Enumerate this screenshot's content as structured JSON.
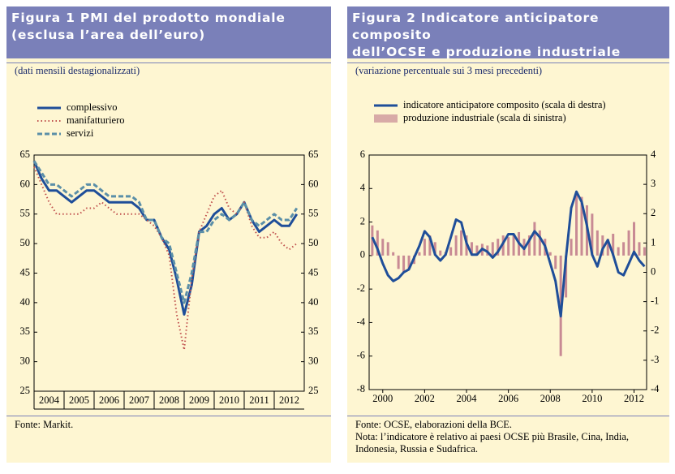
{
  "chart_data": [
    {
      "type": "line",
      "title": [
        "Figura 1 PMI del prodotto mondiale",
        "(esclusa l’area dell’euro)"
      ],
      "subtitle": "(dati mensili destagionalizzati)",
      "source": "Fonte: Markit.",
      "x": [
        2004,
        2004.25,
        2004.5,
        2004.75,
        2005,
        2005.25,
        2005.5,
        2005.75,
        2006,
        2006.25,
        2006.5,
        2006.75,
        2007,
        2007.25,
        2007.5,
        2007.75,
        2008,
        2008.25,
        2008.5,
        2008.75,
        2009,
        2009.25,
        2009.5,
        2009.75,
        2010,
        2010.25,
        2010.5,
        2010.75,
        2011,
        2011.25,
        2011.5,
        2011.75,
        2012,
        2012.25,
        2012.5,
        2012.75
      ],
      "xlim": [
        2004,
        2013
      ],
      "xticks": [
        2004,
        2005,
        2006,
        2007,
        2008,
        2009,
        2010,
        2011,
        2012
      ],
      "xtick_label_position": "between",
      "ylim": [
        25,
        65
      ],
      "yticks": [
        25,
        30,
        35,
        40,
        45,
        50,
        55,
        60,
        65
      ],
      "y2lim": [
        25,
        65
      ],
      "y2ticks": [
        25,
        30,
        35,
        40,
        45,
        50,
        55,
        60,
        65
      ],
      "series": [
        {
          "name": "complessivo",
          "color": "#1f4e99",
          "line_style": "solid",
          "values": [
            64,
            61,
            59,
            59,
            58,
            57,
            58,
            59,
            59,
            58,
            57,
            57,
            57,
            57,
            56,
            54,
            54,
            51,
            49,
            44,
            38,
            43,
            52,
            53,
            55,
            56,
            54,
            55,
            57,
            54,
            52,
            53,
            54,
            53,
            53,
            55
          ]
        },
        {
          "name": "manifatturiero",
          "color": "#c0504d",
          "line_style": "dotted",
          "values": [
            63,
            60,
            57,
            55,
            55,
            55,
            55,
            56,
            56,
            57,
            56,
            55,
            55,
            55,
            55,
            54,
            53,
            51,
            48,
            38,
            32,
            44,
            52,
            55,
            58,
            59,
            56,
            55,
            57,
            53,
            51,
            51,
            52,
            50,
            49,
            50
          ]
        },
        {
          "name": "servizi",
          "color": "#5b8fa8",
          "line_style": "dashed",
          "values": [
            64,
            62,
            60,
            60,
            59,
            58,
            59,
            60,
            60,
            59,
            58,
            58,
            58,
            58,
            57,
            54,
            54,
            51,
            50,
            45,
            40,
            45,
            52,
            52,
            54,
            55,
            54,
            55,
            57,
            54,
            53,
            54,
            55,
            54,
            54,
            56
          ]
        }
      ]
    },
    {
      "type": "combo",
      "title": [
        "Figura 2 Indicatore anticipatore composito",
        "dell’OCSE e produzione industriale"
      ],
      "subtitle": "(variazione percentuale sui 3 mesi precedenti)",
      "source": "Fonte: OCSE, elaborazioni della BCE.",
      "note": "Nota: l’indicatore è relativo ai paesi OCSE più Brasile, Cina, India, Indonesia, Russia e Sudafrica.",
      "x": [
        1999.5,
        1999.75,
        2000,
        2000.25,
        2000.5,
        2000.75,
        2001,
        2001.25,
        2001.5,
        2001.75,
        2002,
        2002.25,
        2002.5,
        2002.75,
        2003,
        2003.25,
        2003.5,
        2003.75,
        2004,
        2004.25,
        2004.5,
        2004.75,
        2005,
        2005.25,
        2005.5,
        2005.75,
        2006,
        2006.25,
        2006.5,
        2006.75,
        2007,
        2007.25,
        2007.5,
        2007.75,
        2008,
        2008.25,
        2008.5,
        2008.75,
        2009,
        2009.25,
        2009.5,
        2009.75,
        2010,
        2010.25,
        2010.5,
        2010.75,
        2011,
        2011.25,
        2011.5,
        2011.75,
        2012,
        2012.25,
        2012.5
      ],
      "xlim": [
        1999.35,
        2012.6
      ],
      "xticks": [
        2000,
        2002,
        2004,
        2006,
        2008,
        2010,
        2012
      ],
      "xtick_label_position": "on",
      "ylim": [
        -8,
        6
      ],
      "yticks": [
        -8,
        -6,
        -4,
        -2,
        0,
        2,
        4,
        6
      ],
      "y2lim": [
        -4,
        4
      ],
      "y2ticks": [
        -4,
        -3,
        -2,
        -1,
        0,
        1,
        2,
        3,
        4
      ],
      "series": [
        {
          "name": "indicatore anticipatore composito (scala di destra)",
          "type": "line",
          "axis": "y2",
          "color": "#1f4e99",
          "values": [
            1.2,
            0.8,
            0.3,
            -0.1,
            -0.3,
            -0.2,
            0.0,
            0.1,
            0.5,
            0.9,
            1.4,
            1.2,
            0.6,
            0.4,
            0.6,
            1.2,
            1.8,
            1.7,
            1.0,
            0.6,
            0.6,
            0.8,
            0.7,
            0.5,
            0.7,
            1.0,
            1.3,
            1.3,
            1.0,
            0.8,
            1.1,
            1.4,
            1.2,
            0.9,
            0.3,
            -0.3,
            -1.5,
            0.5,
            2.2,
            2.75,
            2.4,
            1.6,
            0.6,
            0.2,
            0.8,
            1.1,
            0.6,
            0.0,
            -0.1,
            0.3,
            0.7,
            0.4,
            0.2
          ]
        },
        {
          "name": "produzione industriale (scala di sinistra)",
          "type": "bar",
          "axis": "y",
          "color": "#c88a94",
          "values": [
            1.8,
            1.5,
            1.0,
            0.8,
            0.2,
            -0.8,
            -1.0,
            -0.8,
            -0.5,
            0.2,
            1.0,
            1.2,
            0.8,
            0.3,
            0.2,
            0.5,
            1.2,
            1.5,
            1.2,
            0.8,
            0.6,
            0.7,
            0.6,
            0.8,
            1.0,
            1.2,
            1.1,
            1.3,
            1.4,
            1.0,
            1.2,
            2.0,
            1.5,
            1.0,
            0.2,
            -0.8,
            -6.0,
            -2.5,
            1.0,
            3.8,
            3.5,
            3.0,
            2.5,
            1.5,
            1.2,
            1.0,
            1.3,
            0.5,
            0.8,
            1.5,
            2.0,
            0.8,
            0.5
          ]
        }
      ]
    }
  ]
}
